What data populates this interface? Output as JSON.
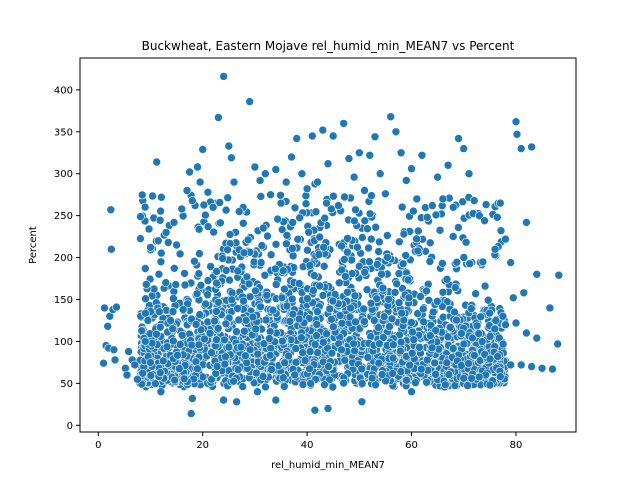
{
  "chart_data": {
    "type": "scatter",
    "title": "Buckwheat, Eastern Mojave rel_humid_min_MEAN7 vs Percent",
    "xlabel": "rel_humid_min_MEAN7",
    "ylabel": "Percent",
    "xlim": [
      -3.5,
      91.5
    ],
    "ylim": [
      -8,
      438
    ],
    "xticks": [
      0,
      20,
      40,
      60,
      80
    ],
    "yticks": [
      0,
      50,
      100,
      150,
      200,
      250,
      300,
      350,
      400
    ],
    "grid": false,
    "legend": "none",
    "point_color": "#1f77b4",
    "edge_color": "#ffffff",
    "points": [
      [
        1.2,
        140
      ],
      [
        1.5,
        95
      ],
      [
        1.8,
        118
      ],
      [
        2.0,
        92
      ],
      [
        2.2,
        130
      ],
      [
        2.4,
        257
      ],
      [
        2.5,
        210
      ],
      [
        2.8,
        138
      ],
      [
        3.0,
        90
      ],
      [
        3.2,
        78
      ],
      [
        3.5,
        141
      ],
      [
        1.0,
        74
      ],
      [
        5.2,
        68
      ],
      [
        5.5,
        60
      ],
      [
        5.8,
        88
      ],
      [
        6.5,
        78
      ],
      [
        7.0,
        72
      ],
      [
        7.5,
        55
      ],
      [
        8.5,
        62
      ],
      [
        9.0,
        100
      ],
      [
        9.2,
        168
      ],
      [
        9.5,
        125
      ],
      [
        10.0,
        75
      ],
      [
        11.2,
        314
      ],
      [
        11.5,
        220
      ],
      [
        12.0,
        195
      ],
      [
        13.0,
        230
      ],
      [
        14.5,
        242
      ],
      [
        15.0,
        215
      ],
      [
        16.0,
        258
      ],
      [
        17.0,
        280
      ],
      [
        17.5,
        302
      ],
      [
        18.0,
        268
      ],
      [
        19.0,
        308
      ],
      [
        19.5,
        290
      ],
      [
        20.0,
        329
      ],
      [
        21.0,
        278
      ],
      [
        22.0,
        260
      ],
      [
        23.0,
        367
      ],
      [
        24.0,
        416
      ],
      [
        25.0,
        333
      ],
      [
        25.5,
        319
      ],
      [
        26.0,
        290
      ],
      [
        27.0,
        255
      ],
      [
        29.0,
        386
      ],
      [
        30.0,
        308
      ],
      [
        31.0,
        292
      ],
      [
        32.0,
        300
      ],
      [
        33.0,
        275
      ],
      [
        34.0,
        305
      ],
      [
        35.0,
        265
      ],
      [
        36.0,
        290
      ],
      [
        37.0,
        320
      ],
      [
        38.0,
        342
      ],
      [
        39.0,
        300
      ],
      [
        40.0,
        282
      ],
      [
        41.0,
        345
      ],
      [
        42.0,
        290
      ],
      [
        43.0,
        352
      ],
      [
        44.0,
        312
      ],
      [
        45.0,
        345
      ],
      [
        46.0,
        262
      ],
      [
        47.0,
        360
      ],
      [
        48.0,
        318
      ],
      [
        49.0,
        296
      ],
      [
        50.0,
        325
      ],
      [
        51.0,
        280
      ],
      [
        52.0,
        322
      ],
      [
        53.0,
        344
      ],
      [
        54.0,
        300
      ],
      [
        55.0,
        276
      ],
      [
        56.0,
        368
      ],
      [
        57.0,
        350
      ],
      [
        58.0,
        325
      ],
      [
        59.0,
        292
      ],
      [
        60.0,
        306
      ],
      [
        61.0,
        270
      ],
      [
        62.0,
        322
      ],
      [
        63.0,
        248
      ],
      [
        64.0,
        262
      ],
      [
        65.0,
        296
      ],
      [
        66.0,
        270
      ],
      [
        67.0,
        310
      ],
      [
        68.0,
        260
      ],
      [
        69.0,
        342
      ],
      [
        70.0,
        330
      ],
      [
        71.0,
        300
      ],
      [
        72.0,
        268
      ],
      [
        73.0,
        250
      ],
      [
        74.0,
        244
      ],
      [
        76.0,
        210
      ],
      [
        77.0,
        265
      ],
      [
        78.0,
        222
      ],
      [
        79.0,
        194
      ],
      [
        80.0,
        362
      ],
      [
        80.2,
        347
      ],
      [
        81.0,
        330
      ],
      [
        82.0,
        242
      ],
      [
        83.0,
        332
      ],
      [
        84.0,
        180
      ],
      [
        86.5,
        140
      ],
      [
        87.0,
        67
      ],
      [
        88.0,
        97
      ],
      [
        88.2,
        179
      ],
      [
        17.8,
        14
      ],
      [
        41.5,
        18
      ],
      [
        44.0,
        20
      ],
      [
        30.5,
        40
      ],
      [
        50.5,
        28
      ],
      [
        34.0,
        30
      ],
      [
        24.0,
        30
      ],
      [
        26.5,
        28
      ],
      [
        12.0,
        40
      ],
      [
        18.0,
        32
      ],
      [
        60.0,
        40
      ],
      [
        70.0,
        56
      ],
      [
        75.0,
        48
      ],
      [
        77.0,
        58
      ],
      [
        79.0,
        72
      ],
      [
        81.0,
        72
      ],
      [
        83.0,
        70
      ],
      [
        85.0,
        68
      ],
      [
        78.0,
        120
      ],
      [
        80.0,
        122
      ],
      [
        82.0,
        110
      ],
      [
        84.0,
        104
      ],
      [
        79.5,
        152
      ],
      [
        81.5,
        158
      ],
      [
        77.5,
        130
      ]
    ],
    "cloud": {
      "x_from": 8,
      "x_to": 78,
      "y_floor": 45,
      "count": 2600
    }
  }
}
